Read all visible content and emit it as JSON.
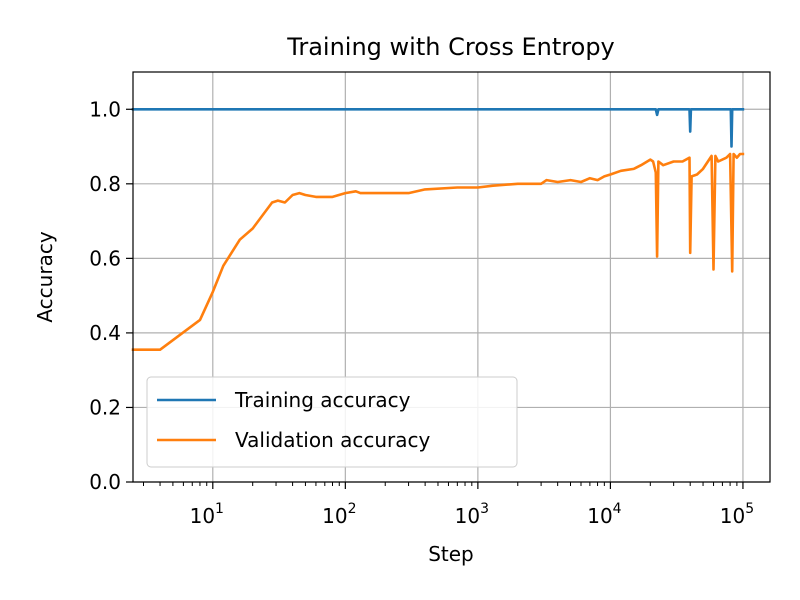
{
  "chart_data": {
    "type": "line",
    "title": "Training with Cross Entropy",
    "xlabel": "Step",
    "ylabel": "Accuracy",
    "xscale": "log",
    "xlim": [
      2.5,
      160000
    ],
    "ylim": [
      0.0,
      1.1
    ],
    "grid": true,
    "legend_position": "lower-left",
    "xticks": [
      {
        "value": 10,
        "base": "10",
        "exp": "1"
      },
      {
        "value": 100,
        "base": "10",
        "exp": "2"
      },
      {
        "value": 1000,
        "base": "10",
        "exp": "3"
      },
      {
        "value": 10000,
        "base": "10",
        "exp": "4"
      },
      {
        "value": 100000,
        "base": "10",
        "exp": "5"
      }
    ],
    "yticks": [
      "0.0",
      "0.2",
      "0.4",
      "0.6",
      "0.8",
      "1.0"
    ],
    "series": [
      {
        "name": "Training accuracy",
        "color": "#1f77b4",
        "points": [
          [
            2.5,
            1.0
          ],
          [
            22000,
            1.0
          ],
          [
            22500,
            0.985
          ],
          [
            23000,
            1.0
          ],
          [
            39500,
            1.0
          ],
          [
            40000,
            0.94
          ],
          [
            40500,
            1.0
          ],
          [
            81000,
            1.0
          ],
          [
            82000,
            0.9
          ],
          [
            83000,
            1.0
          ],
          [
            100000,
            1.0
          ]
        ]
      },
      {
        "name": "Validation accuracy",
        "color": "#ff7f0e",
        "points": [
          [
            2.5,
            0.355
          ],
          [
            4,
            0.355
          ],
          [
            8,
            0.435
          ],
          [
            10,
            0.51
          ],
          [
            12,
            0.58
          ],
          [
            16,
            0.65
          ],
          [
            20,
            0.68
          ],
          [
            28,
            0.75
          ],
          [
            31,
            0.755
          ],
          [
            35,
            0.75
          ],
          [
            40,
            0.77
          ],
          [
            45,
            0.775
          ],
          [
            50,
            0.77
          ],
          [
            60,
            0.765
          ],
          [
            80,
            0.765
          ],
          [
            100,
            0.775
          ],
          [
            120,
            0.78
          ],
          [
            130,
            0.775
          ],
          [
            200,
            0.775
          ],
          [
            300,
            0.775
          ],
          [
            400,
            0.785
          ],
          [
            700,
            0.79
          ],
          [
            1000,
            0.79
          ],
          [
            1300,
            0.795
          ],
          [
            2000,
            0.8
          ],
          [
            3000,
            0.8
          ],
          [
            3300,
            0.81
          ],
          [
            4000,
            0.805
          ],
          [
            5000,
            0.81
          ],
          [
            6000,
            0.805
          ],
          [
            7000,
            0.815
          ],
          [
            8000,
            0.81
          ],
          [
            9000,
            0.82
          ],
          [
            10000,
            0.825
          ],
          [
            12000,
            0.835
          ],
          [
            15000,
            0.84
          ],
          [
            17000,
            0.85
          ],
          [
            20000,
            0.865
          ],
          [
            21000,
            0.86
          ],
          [
            22000,
            0.83
          ],
          [
            22500,
            0.605
          ],
          [
            23000,
            0.86
          ],
          [
            25000,
            0.85
          ],
          [
            30000,
            0.86
          ],
          [
            35000,
            0.86
          ],
          [
            39500,
            0.87
          ],
          [
            40000,
            0.615
          ],
          [
            41000,
            0.82
          ],
          [
            45000,
            0.825
          ],
          [
            50000,
            0.84
          ],
          [
            58000,
            0.875
          ],
          [
            60000,
            0.57
          ],
          [
            62000,
            0.875
          ],
          [
            65000,
            0.86
          ],
          [
            75000,
            0.87
          ],
          [
            80000,
            0.88
          ],
          [
            83000,
            0.565
          ],
          [
            85000,
            0.88
          ],
          [
            90000,
            0.87
          ],
          [
            95000,
            0.88
          ],
          [
            100000,
            0.88
          ]
        ]
      }
    ]
  }
}
